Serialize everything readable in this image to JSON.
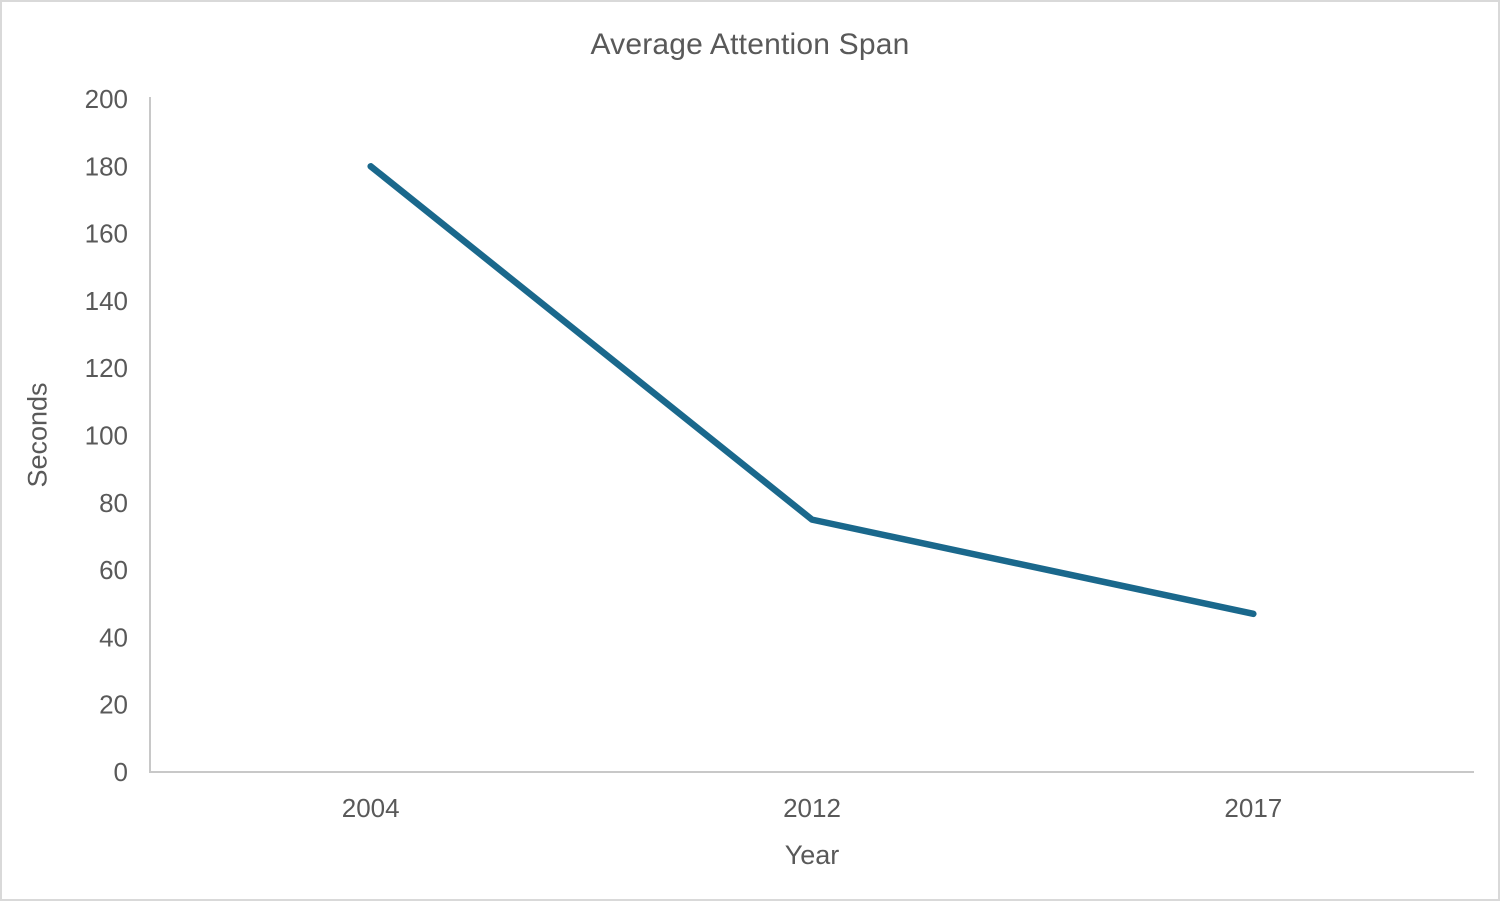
{
  "chart_data": {
    "type": "line",
    "title": "Average Attention Span",
    "xlabel": "Year",
    "ylabel": "Seconds",
    "categories": [
      "2004",
      "2012",
      "2017"
    ],
    "series": [
      {
        "name": "Average attention span (seconds)",
        "values": [
          180,
          75,
          47
        ]
      }
    ],
    "ylim": [
      0,
      200
    ],
    "y_ticks": [
      0,
      20,
      40,
      60,
      80,
      100,
      120,
      140,
      160,
      180,
      200
    ],
    "grid": false,
    "legend": "none",
    "colors": {
      "line": "#1a688c",
      "text": "#595959",
      "axis_line": "#c8c8c8",
      "frame_border": "#d9d9d9",
      "background": "#ffffff"
    }
  }
}
